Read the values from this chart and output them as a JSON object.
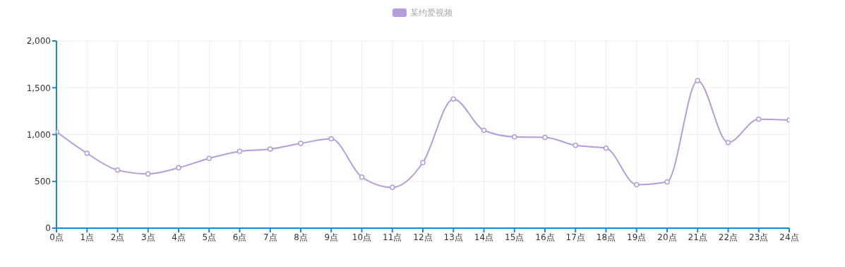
{
  "chart_data": {
    "type": "line",
    "categories": [
      "0点",
      "1点",
      "2点",
      "3点",
      "4点",
      "5点",
      "6点",
      "7点",
      "8点",
      "9点",
      "10点",
      "11点",
      "12点",
      "13点",
      "14点",
      "15点",
      "16点",
      "17点",
      "18点",
      "19点",
      "20点",
      "21点",
      "22点",
      "23点",
      "24点"
    ],
    "series": [
      {
        "name": "某约爱视频",
        "color": "#b39ddb",
        "values": [
          1030,
          800,
          620,
          580,
          645,
          745,
          820,
          845,
          905,
          955,
          545,
          435,
          700,
          1380,
          1045,
          975,
          970,
          885,
          855,
          465,
          495,
          1575,
          915,
          1165,
          1155
        ]
      }
    ],
    "ylim": [
      0,
      2000
    ],
    "yticks": [
      {
        "value": 0,
        "label": "0"
      },
      {
        "value": 500,
        "label": "500"
      },
      {
        "value": 1000,
        "label": "1,000"
      },
      {
        "value": 1500,
        "label": "1,500"
      },
      {
        "value": 2000,
        "label": "2,000"
      }
    ],
    "grid": true,
    "legend": "top",
    "marker": "circle",
    "line_style": "solid"
  }
}
